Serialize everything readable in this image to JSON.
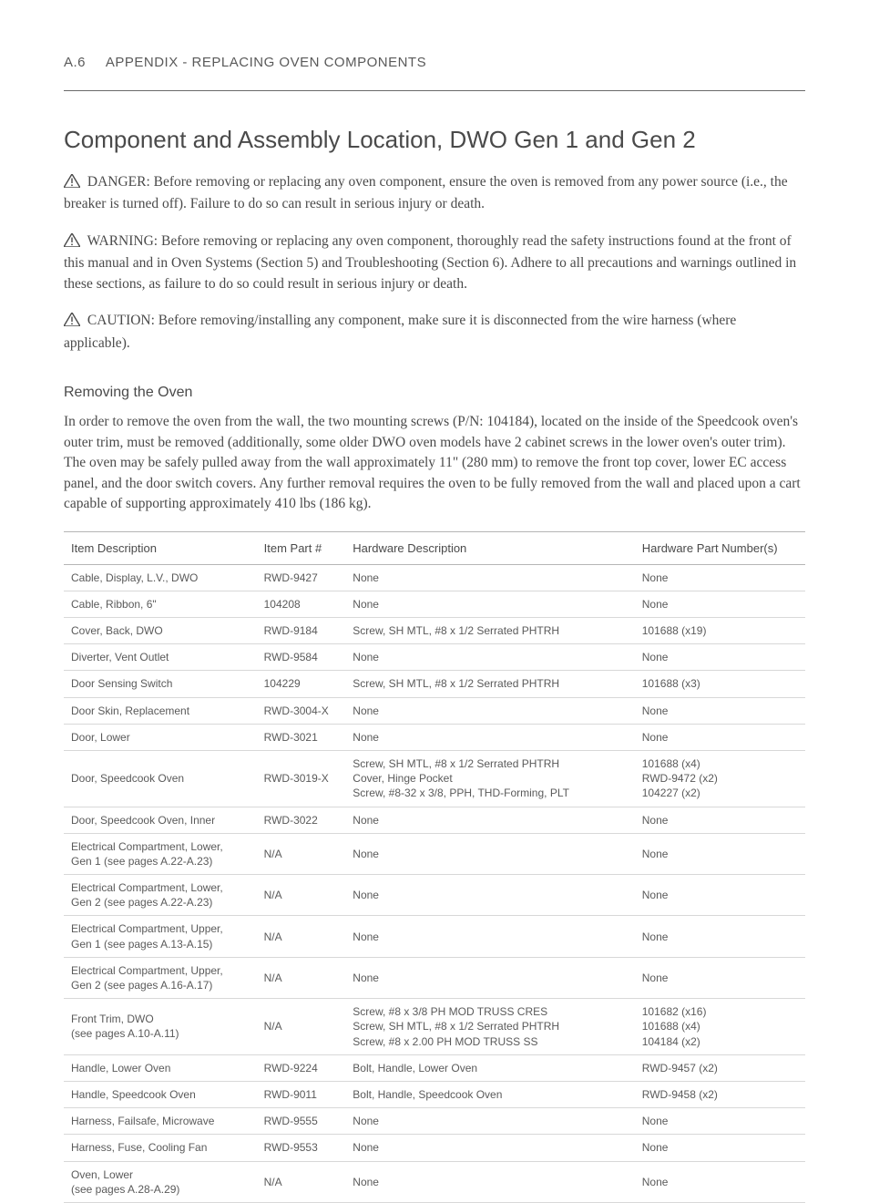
{
  "header": {
    "page_number": "A.6",
    "appendix_title": "APPENDIX - REPLACING OVEN COMPONENTS"
  },
  "section_title": "Component and Assembly Location, DWO Gen 1 and Gen 2",
  "alerts": {
    "danger": "DANGER: Before removing or replacing any oven component, ensure the oven is removed from any power source (i.e., the breaker is turned off). Failure to do so can result in serious injury or death.",
    "warning": "WARNING: Before removing or replacing any oven component, thoroughly read the safety instructions found at the front of this manual and in Oven Systems (Section 5) and Troubleshooting (Section 6). Adhere to all precautions and warnings outlined in these sections, as failure to do so could result in serious injury or death.",
    "caution": "CAUTION: Before removing/installing any component, make sure it is disconnected from the wire harness (where applicable)."
  },
  "removing": {
    "heading": "Removing the Oven",
    "body": "In order to remove the oven from the wall, the two mounting screws (P/N: 104184), located on the inside of the Speedcook oven's outer trim, must be removed (additionally, some older DWO oven models have 2 cabinet screws in the lower oven's outer trim). The oven may be safely pulled away from the wall approximately 11\" (280 mm) to remove the front top cover, lower EC access panel, and the door switch covers. Any further removal requires the oven to be fully removed from the wall and placed upon a cart capable of supporting approximately 410 lbs (186 kg)."
  },
  "table": {
    "columns": [
      "Item Description",
      "Item Part #",
      "Hardware Description",
      "Hardware Part Number(s)"
    ],
    "col_widths_pct": [
      26,
      12,
      39,
      23
    ],
    "header_fontsize_pt": 13,
    "cell_fontsize_pt": 12,
    "border_color": "#d8d8d8",
    "header_border_color": "#b5b5b5",
    "rows": [
      {
        "desc": "Cable, Display, L.V., DWO",
        "part": "RWD-9427",
        "hw_desc": "None",
        "hw_pn": "None"
      },
      {
        "desc": "Cable, Ribbon, 6\"",
        "part": "104208",
        "hw_desc": "None",
        "hw_pn": "None"
      },
      {
        "desc": "Cover, Back, DWO",
        "part": "RWD-9184",
        "hw_desc": "Screw, SH MTL, #8 x 1/2 Serrated PHTRH",
        "hw_pn": "101688 (x19)"
      },
      {
        "desc": "Diverter, Vent Outlet",
        "part": "RWD-9584",
        "hw_desc": "None",
        "hw_pn": "None"
      },
      {
        "desc": "Door Sensing Switch",
        "part": "104229",
        "hw_desc": "Screw, SH MTL, #8 x 1/2 Serrated PHTRH",
        "hw_pn": "101688 (x3)"
      },
      {
        "desc": "Door Skin, Replacement",
        "part": "RWD-3004-X",
        "hw_desc": "None",
        "hw_pn": "None"
      },
      {
        "desc": "Door, Lower",
        "part": "RWD-3021",
        "hw_desc": "None",
        "hw_pn": "None"
      },
      {
        "desc": "Door, Speedcook Oven",
        "part": "RWD-3019-X",
        "hw_desc": "Screw, SH MTL, #8 x 1/2 Serrated PHTRH\nCover, Hinge Pocket\nScrew, #8-32 x 3/8, PPH, THD-Forming, PLT",
        "hw_pn": "101688 (x4)\nRWD-9472 (x2)\n104227 (x2)"
      },
      {
        "desc": "Door, Speedcook Oven, Inner",
        "part": "RWD-3022",
        "hw_desc": "None",
        "hw_pn": "None"
      },
      {
        "desc": "Electrical Compartment, Lower,\nGen 1 (see pages A.22-A.23)",
        "part": "N/A",
        "hw_desc": "None",
        "hw_pn": "None"
      },
      {
        "desc": "Electrical Compartment, Lower,\nGen 2 (see pages A.22-A.23)",
        "part": "N/A",
        "hw_desc": "None",
        "hw_pn": "None"
      },
      {
        "desc": "Electrical Compartment, Upper,\nGen 1 (see pages A.13-A.15)",
        "part": "N/A",
        "hw_desc": "None",
        "hw_pn": "None"
      },
      {
        "desc": "Electrical Compartment, Upper,\nGen 2 (see pages A.16-A.17)",
        "part": "N/A",
        "hw_desc": "None",
        "hw_pn": "None"
      },
      {
        "desc": "Front Trim, DWO\n(see pages A.10-A.11)",
        "part": "N/A",
        "hw_desc": "Screw, #8 x 3/8 PH MOD TRUSS CRES\nScrew, SH MTL, #8 x 1/2 Serrated PHTRH\nScrew, #8 x 2.00 PH MOD TRUSS SS",
        "hw_pn": "101682 (x16)\n101688 (x4)\n104184 (x2)"
      },
      {
        "desc": "Handle, Lower Oven",
        "part": "RWD-9224",
        "hw_desc": "Bolt, Handle, Lower Oven",
        "hw_pn": "RWD-9457 (x2)"
      },
      {
        "desc": "Handle, Speedcook Oven",
        "part": "RWD-9011",
        "hw_desc": "Bolt, Handle, Speedcook Oven",
        "hw_pn": "RWD-9458 (x2)"
      },
      {
        "desc": "Harness, Failsafe, Microwave",
        "part": "RWD-9555",
        "hw_desc": "None",
        "hw_pn": "None"
      },
      {
        "desc": "Harness, Fuse, Cooling Fan",
        "part": "RWD-9553",
        "hw_desc": "None",
        "hw_pn": "None"
      },
      {
        "desc": "Oven, Lower\n(see pages A.28-A.29)",
        "part": "N/A",
        "hw_desc": "None",
        "hw_pn": "None"
      }
    ]
  },
  "style": {
    "page_bg": "#ffffff",
    "text_color": "#4a4a4a",
    "muted_text": "#5a5a5a",
    "rule_color": "#6a6a6a",
    "body_font": "Georgia, Times New Roman, serif",
    "ui_font": "Segoe UI, Helvetica Neue, Arial, sans-serif",
    "h1_fontsize_pt": 26,
    "h2_fontsize_pt": 16,
    "body_fontsize_pt": 15.5,
    "header_fontsize_pt": 15
  }
}
